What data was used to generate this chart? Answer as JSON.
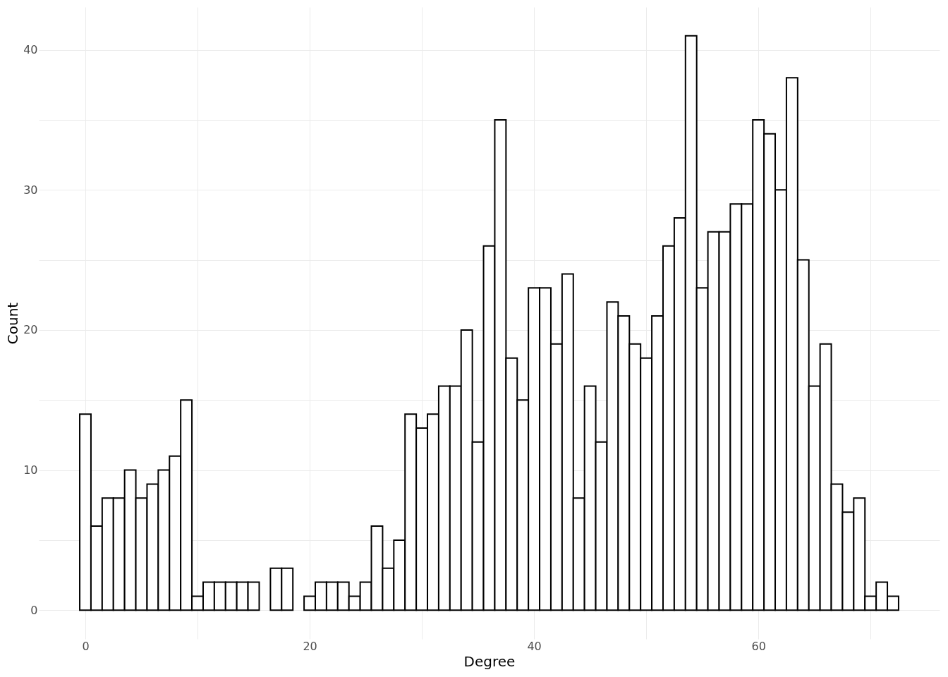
{
  "chart_data": {
    "type": "histogram",
    "xlabel": "Degree",
    "ylabel": "Count",
    "bins": [
      -0.5,
      0.5,
      1.5,
      2.5,
      3.5,
      4.5,
      5.5,
      6.5,
      7.5,
      8.5,
      9.5,
      10.5,
      11.5,
      12.5,
      13.5,
      14.5,
      15.5,
      16.5,
      17.5,
      18.5,
      19.5,
      20.5,
      21.5,
      22.5,
      23.5,
      24.5,
      25.5,
      26.5,
      27.5,
      28.5,
      29.5,
      30.5,
      31.5,
      32.5,
      33.5,
      34.5,
      35.5,
      36.5,
      37.5,
      38.5,
      39.5,
      40.5,
      41.5,
      42.5,
      43.5,
      44.5,
      45.5,
      46.5,
      47.5,
      48.5,
      49.5,
      50.5,
      51.5,
      52.5,
      53.5,
      54.5,
      55.5,
      56.5,
      57.5,
      58.5,
      59.5,
      60.5,
      61.5,
      62.5,
      63.5,
      64.5,
      65.5,
      66.5,
      67.5,
      68.5,
      69.5,
      70.5,
      71.5,
      72.5
    ],
    "values": [
      14,
      6,
      8,
      8,
      10,
      8,
      9,
      10,
      11,
      15,
      1,
      2,
      2,
      2,
      2,
      2,
      0,
      3,
      3,
      0,
      1,
      2,
      2,
      2,
      1,
      2,
      6,
      3,
      5,
      14,
      13,
      14,
      16,
      16,
      20,
      12,
      26,
      35,
      18,
      15,
      23,
      23,
      19,
      24,
      8,
      16,
      12,
      22,
      21,
      19,
      18,
      21,
      26,
      28,
      41,
      23,
      27,
      27,
      29,
      29,
      35,
      34,
      30,
      38,
      25,
      16,
      19,
      9,
      7,
      8,
      1,
      2,
      1
    ],
    "color": "#ffffff",
    "xlim": [
      -4.15,
      76.15
    ],
    "ylim": [
      -2.05,
      43.05
    ],
    "xticks": [
      0,
      {
        "value": 10,
        "label": null
      },
      20,
      {
        "value": 30,
        "label": null
      },
      40,
      {
        "value": 50,
        "label": null
      },
      60,
      {
        "value": 70,
        "label": null
      }
    ],
    "yticks": [
      0,
      {
        "value": 5,
        "label": null
      },
      10,
      {
        "value": 15,
        "label": null
      },
      20,
      {
        "value": 25,
        "label": null
      },
      30,
      {
        "value": 35,
        "label": null
      },
      40
    ],
    "grid": true
  }
}
